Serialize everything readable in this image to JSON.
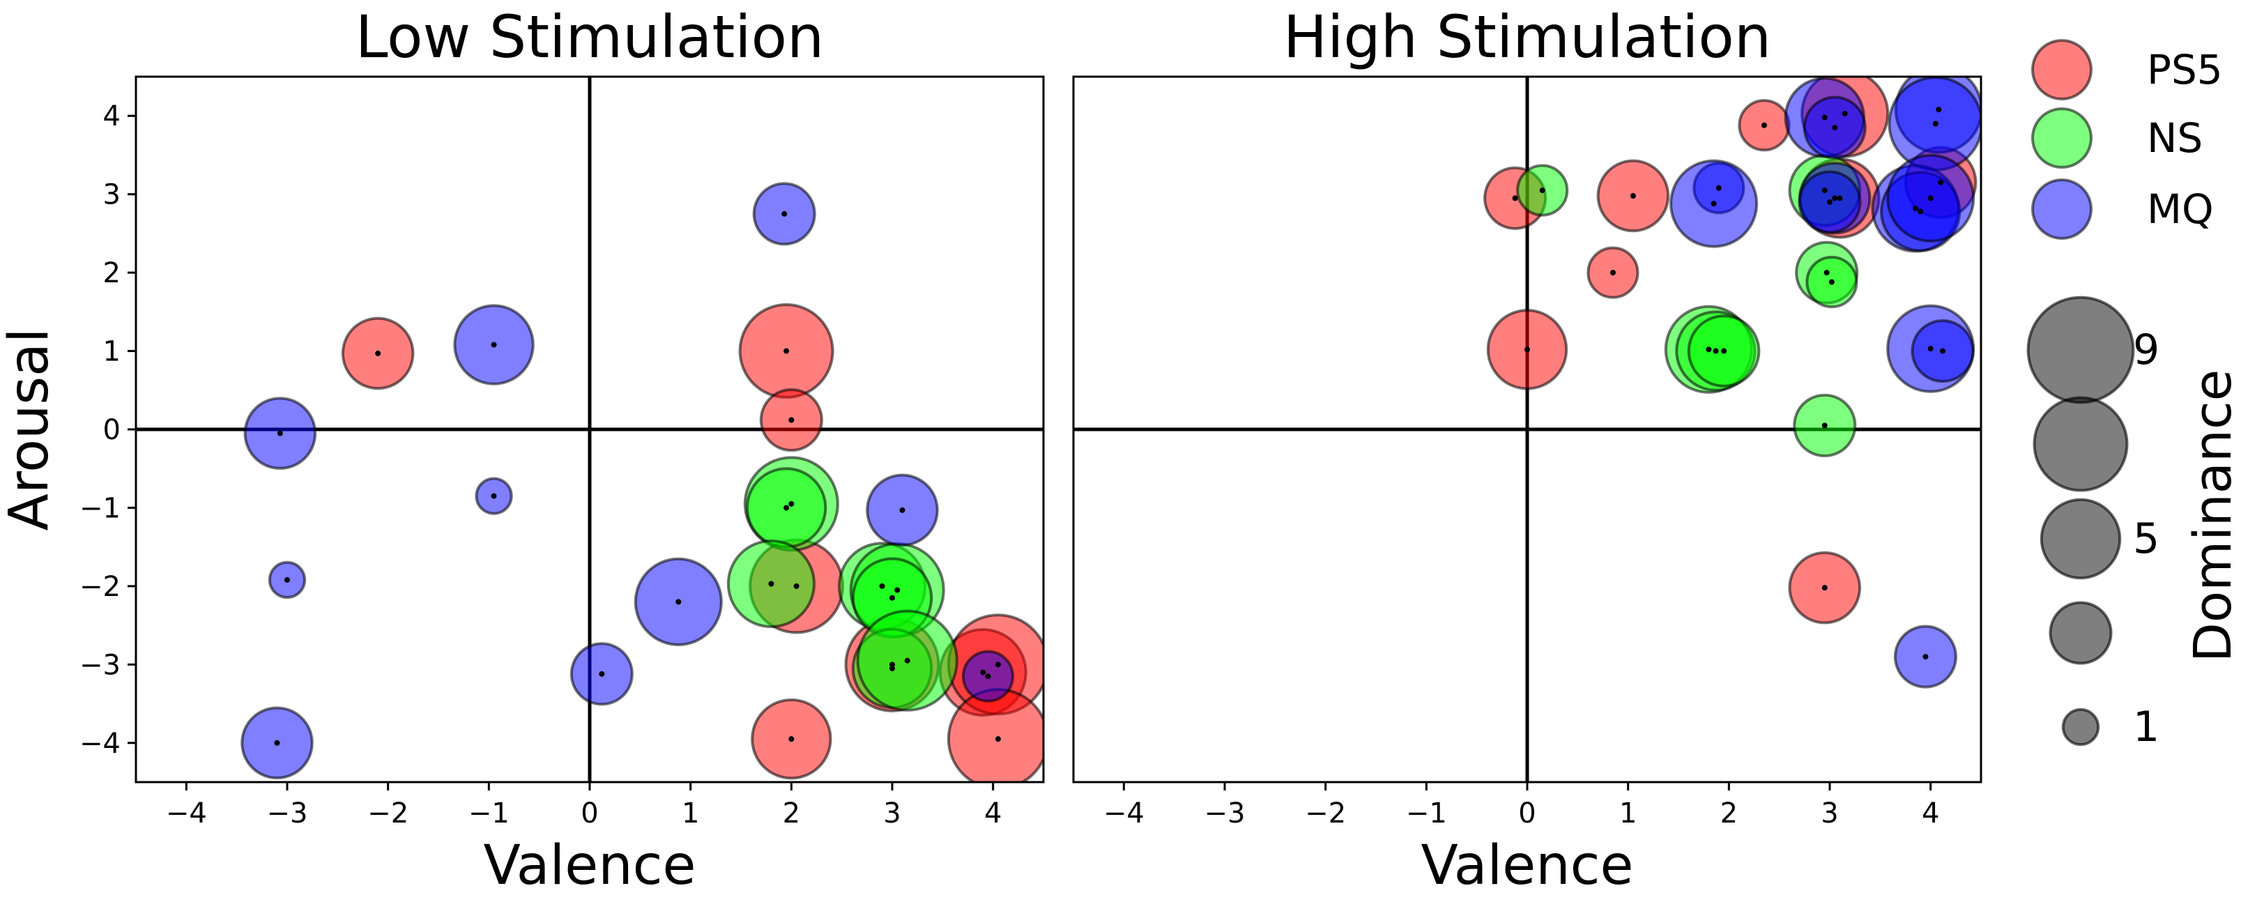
{
  "chart_data": [
    {
      "type": "scatter",
      "subtype": "bubble",
      "title": "Low Stimulation",
      "xlabel": "Valence",
      "ylabel": "Arousal",
      "xlim": [
        -4.5,
        4.5
      ],
      "ylim": [
        -4.5,
        4.5
      ],
      "xticks": [
        "−4",
        "−3",
        "−2",
        "−1",
        "0",
        "1",
        "2",
        "3",
        "4"
      ],
      "yticks": [
        "−4",
        "−3",
        "−2",
        "−1",
        "0",
        "1",
        "2",
        "3",
        "4"
      ],
      "series": [
        {
          "name": "PS5",
          "points": [
            {
              "x": -2.1,
              "y": 0.97,
              "dominance": 4
            },
            {
              "x": 1.95,
              "y": 1.0,
              "dominance": 7
            },
            {
              "x": 2.0,
              "y": 0.12,
              "dominance": 3
            },
            {
              "x": 2.05,
              "y": -2.0,
              "dominance": 7
            },
            {
              "x": 3.0,
              "y": -3.0,
              "dominance": 7
            },
            {
              "x": 2.0,
              "y": -3.95,
              "dominance": 5
            },
            {
              "x": 3.9,
              "y": -3.1,
              "dominance": 6
            },
            {
              "x": 4.05,
              "y": -3.0,
              "dominance": 8
            },
            {
              "x": 4.05,
              "y": -3.95,
              "dominance": 8
            }
          ]
        },
        {
          "name": "NS",
          "points": [
            {
              "x": 2.0,
              "y": -0.95,
              "dominance": 7
            },
            {
              "x": 1.95,
              "y": -1.0,
              "dominance": 5
            },
            {
              "x": 1.8,
              "y": -1.97,
              "dominance": 6
            },
            {
              "x": 2.9,
              "y": -2.0,
              "dominance": 6
            },
            {
              "x": 3.05,
              "y": -2.05,
              "dominance": 7
            },
            {
              "x": 3.0,
              "y": -2.15,
              "dominance": 5
            },
            {
              "x": 3.0,
              "y": -3.05,
              "dominance": 5
            },
            {
              "x": 3.15,
              "y": -2.95,
              "dominance": 8
            }
          ]
        },
        {
          "name": "MQ",
          "points": [
            {
              "x": 1.93,
              "y": 2.75,
              "dominance": 3
            },
            {
              "x": -0.95,
              "y": 1.08,
              "dominance": 5
            },
            {
              "x": -3.07,
              "y": -0.05,
              "dominance": 4
            },
            {
              "x": -0.95,
              "y": -0.85,
              "dominance": 1
            },
            {
              "x": 3.1,
              "y": -1.03,
              "dominance": 4
            },
            {
              "x": -3.0,
              "y": -1.92,
              "dominance": 1
            },
            {
              "x": 0.88,
              "y": -2.2,
              "dominance": 6
            },
            {
              "x": 0.12,
              "y": -3.12,
              "dominance": 3
            },
            {
              "x": 3.95,
              "y": -3.15,
              "dominance": 2
            },
            {
              "x": -3.1,
              "y": -4.0,
              "dominance": 4
            }
          ]
        }
      ]
    },
    {
      "type": "scatter",
      "subtype": "bubble",
      "title": "High Stimulation",
      "xlabel": "Valence",
      "ylabel": "",
      "xlim": [
        -4.5,
        4.5
      ],
      "ylim": [
        -4.5,
        4.5
      ],
      "xticks": [
        "−4",
        "−3",
        "−2",
        "−1",
        "0",
        "1",
        "2",
        "3",
        "4"
      ],
      "yticks": [],
      "series": [
        {
          "name": "PS5",
          "points": [
            {
              "x": 2.35,
              "y": 3.88,
              "dominance": 2
            },
            {
              "x": 3.15,
              "y": 4.03,
              "dominance": 6
            },
            {
              "x": -0.12,
              "y": 2.95,
              "dominance": 3
            },
            {
              "x": 1.05,
              "y": 2.98,
              "dominance": 4
            },
            {
              "x": 3.1,
              "y": 2.95,
              "dominance": 5
            },
            {
              "x": 4.1,
              "y": 3.15,
              "dominance": 4
            },
            {
              "x": 0.85,
              "y": 2.0,
              "dominance": 2
            },
            {
              "x": 0.0,
              "y": 1.02,
              "dominance": 5
            },
            {
              "x": 2.95,
              "y": -2.02,
              "dominance": 4
            }
          ]
        },
        {
          "name": "NS",
          "points": [
            {
              "x": 0.15,
              "y": 3.05,
              "dominance": 2
            },
            {
              "x": 2.95,
              "y": 3.05,
              "dominance": 4
            },
            {
              "x": 2.97,
              "y": 2.0,
              "dominance": 3
            },
            {
              "x": 3.02,
              "y": 1.88,
              "dominance": 2
            },
            {
              "x": 1.8,
              "y": 1.02,
              "dominance": 6
            },
            {
              "x": 1.87,
              "y": 1.0,
              "dominance": 5
            },
            {
              "x": 1.95,
              "y": 1.0,
              "dominance": 4
            },
            {
              "x": 2.95,
              "y": 0.05,
              "dominance": 3
            }
          ]
        },
        {
          "name": "MQ",
          "points": [
            {
              "x": 2.95,
              "y": 3.98,
              "dominance": 5
            },
            {
              "x": 3.05,
              "y": 3.85,
              "dominance": 3
            },
            {
              "x": 4.08,
              "y": 4.08,
              "dominance": 6
            },
            {
              "x": 4.05,
              "y": 3.9,
              "dominance": 7
            },
            {
              "x": 1.9,
              "y": 3.08,
              "dominance": 2
            },
            {
              "x": 1.85,
              "y": 2.88,
              "dominance": 6
            },
            {
              "x": 3.05,
              "y": 2.95,
              "dominance": 4
            },
            {
              "x": 3.0,
              "y": 2.9,
              "dominance": 3
            },
            {
              "x": 3.85,
              "y": 2.82,
              "dominance": 6
            },
            {
              "x": 3.9,
              "y": 2.78,
              "dominance": 5
            },
            {
              "x": 4.0,
              "y": 2.95,
              "dominance": 6
            },
            {
              "x": 4.0,
              "y": 1.03,
              "dominance": 6
            },
            {
              "x": 4.12,
              "y": 1.0,
              "dominance": 3
            },
            {
              "x": 3.95,
              "y": -2.9,
              "dominance": 3
            }
          ]
        }
      ]
    }
  ],
  "legend": {
    "series": [
      {
        "label": "PS5",
        "color": "#ff0000"
      },
      {
        "label": "NS",
        "color": "#00ff00"
      },
      {
        "label": "MQ",
        "color": "#0000ff"
      }
    ],
    "size_title": "Dominance",
    "size_entries": [
      {
        "value": 9,
        "label": "9"
      },
      {
        "value": 7,
        "label": ""
      },
      {
        "value": 5,
        "label": "5"
      },
      {
        "value": 3,
        "label": ""
      },
      {
        "value": 1,
        "label": "1"
      }
    ],
    "size_color": "#000000"
  },
  "style": {
    "bubble_opacity": 0.5
  }
}
